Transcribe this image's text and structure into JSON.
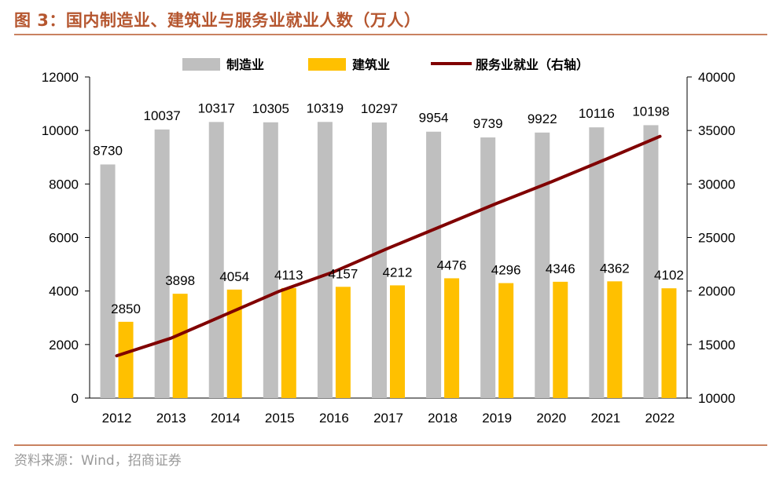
{
  "figure": {
    "title": "图 3：国内制造业、建筑业与服务业就业人数（万人）",
    "source": "资料来源：Wind，招商证券"
  },
  "colors": {
    "manufacturing": "#bfbfbf",
    "construction": "#ffc000",
    "services": "#800000",
    "title": "#b5562f",
    "rule": "#c98260"
  },
  "chart_data": {
    "type": "bar",
    "title": "国内制造业、建筑业与服务业就业人数（万人）",
    "categories": [
      "2012",
      "2013",
      "2014",
      "2015",
      "2016",
      "2017",
      "2018",
      "2019",
      "2020",
      "2021",
      "2022"
    ],
    "series": [
      {
        "name": "制造业",
        "type": "bar",
        "axis": "left",
        "values": [
          8730,
          10037,
          10317,
          10305,
          10319,
          10297,
          9954,
          9739,
          9922,
          10116,
          10198
        ]
      },
      {
        "name": "建筑业",
        "type": "bar",
        "axis": "left",
        "values": [
          2850,
          3898,
          4054,
          4113,
          4157,
          4212,
          4476,
          4296,
          4346,
          4362,
          4102
        ]
      },
      {
        "name": "服务业就业（右轴）",
        "type": "line",
        "axis": "right",
        "values": [
          13950,
          15600,
          17800,
          20000,
          21800,
          24000,
          26100,
          28200,
          30200,
          32300,
          34450
        ]
      }
    ],
    "left_axis": {
      "min": 0,
      "max": 12000,
      "step": 2000,
      "ticks": [
        "0",
        "2000",
        "4000",
        "6000",
        "8000",
        "10000",
        "12000"
      ]
    },
    "right_axis": {
      "min": 10000,
      "max": 40000,
      "step": 5000,
      "ticks": [
        "10000",
        "15000",
        "20000",
        "25000",
        "30000",
        "35000",
        "40000"
      ]
    },
    "legend": {
      "position": "top-center"
    },
    "grid": false
  }
}
